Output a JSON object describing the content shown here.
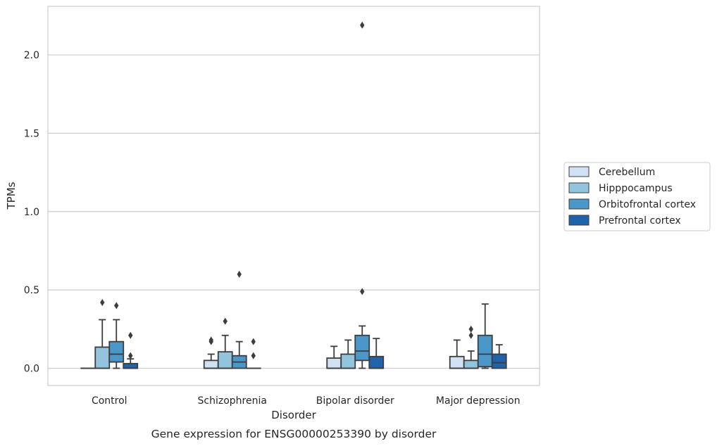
{
  "chart_data": {
    "type": "box",
    "title": "Gene expression for ENSG00000253390 by disorder",
    "xlabel": "Disorder",
    "ylabel": "TPMs",
    "ylim": [
      -0.11,
      2.31
    ],
    "yticks": [
      "0.0",
      "0.5",
      "1.0",
      "1.5",
      "2.0"
    ],
    "ytick_values": [
      0.0,
      0.5,
      1.0,
      1.5,
      2.0
    ],
    "grid": "horizontal",
    "legend_position": "right",
    "categories": [
      "Control",
      "Schizophrenia",
      "Bipolar disorder",
      "Major depression"
    ],
    "series": [
      {
        "name": "Cerebellum",
        "color": "#cfe1f2",
        "boxes": [
          {
            "category": "Control",
            "whislo": 0.0,
            "q1": 0.0,
            "median": 0.0,
            "q3": 0.0,
            "whishi": 0.0,
            "fliers": []
          },
          {
            "category": "Schizophrenia",
            "whislo": 0.0,
            "q1": 0.0,
            "median": 0.0,
            "q3": 0.05,
            "whishi": 0.09,
            "fliers": [
              0.17,
              0.18
            ]
          },
          {
            "category": "Bipolar disorder",
            "whislo": 0.0,
            "q1": 0.0,
            "median": 0.0,
            "q3": 0.065,
            "whishi": 0.14,
            "fliers": []
          },
          {
            "category": "Major depression",
            "whislo": 0.0,
            "q1": 0.0,
            "median": 0.0,
            "q3": 0.075,
            "whishi": 0.18,
            "fliers": []
          }
        ]
      },
      {
        "name": "Hipppocampus",
        "color": "#93c4de",
        "boxes": [
          {
            "category": "Control",
            "whislo": 0.0,
            "q1": 0.0,
            "median": 0.0,
            "q3": 0.135,
            "whishi": 0.31,
            "fliers": [
              0.42
            ]
          },
          {
            "category": "Schizophrenia",
            "whislo": 0.0,
            "q1": 0.0,
            "median": 0.0,
            "q3": 0.105,
            "whishi": 0.21,
            "fliers": [
              0.3
            ]
          },
          {
            "category": "Bipolar disorder",
            "whislo": 0.0,
            "q1": 0.0,
            "median": 0.0,
            "q3": 0.09,
            "whishi": 0.18,
            "fliers": []
          },
          {
            "category": "Major depression",
            "whislo": 0.0,
            "q1": 0.0,
            "median": 0.0,
            "q3": 0.05,
            "whishi": 0.11,
            "fliers": [
              0.21,
              0.25
            ]
          }
        ]
      },
      {
        "name": "Orbitofrontal cortex",
        "color": "#4b97c9",
        "boxes": [
          {
            "category": "Control",
            "whislo": 0.0,
            "q1": 0.04,
            "median": 0.09,
            "q3": 0.17,
            "whishi": 0.31,
            "fliers": [
              0.4
            ]
          },
          {
            "category": "Schizophrenia",
            "whislo": 0.0,
            "q1": 0.0,
            "median": 0.04,
            "q3": 0.08,
            "whishi": 0.17,
            "fliers": [
              0.6
            ]
          },
          {
            "category": "Bipolar disorder",
            "whislo": 0.0,
            "q1": 0.05,
            "median": 0.11,
            "q3": 0.21,
            "whishi": 0.27,
            "fliers": [
              0.49,
              2.19
            ]
          },
          {
            "category": "Major depression",
            "whislo": 0.0,
            "q1": 0.01,
            "median": 0.09,
            "q3": 0.21,
            "whishi": 0.41,
            "fliers": []
          }
        ]
      },
      {
        "name": "Prefrontal cortex",
        "color": "#2163aa",
        "boxes": [
          {
            "category": "Control",
            "whislo": 0.0,
            "q1": 0.0,
            "median": 0.0,
            "q3": 0.03,
            "whishi": 0.06,
            "fliers": [
              0.08,
              0.21
            ]
          },
          {
            "category": "Schizophrenia",
            "whislo": 0.0,
            "q1": 0.0,
            "median": 0.0,
            "q3": 0.0,
            "whishi": 0.0,
            "fliers": [
              0.08,
              0.17
            ]
          },
          {
            "category": "Bipolar disorder",
            "whislo": 0.0,
            "q1": 0.0,
            "median": 0.0,
            "q3": 0.075,
            "whishi": 0.19,
            "fliers": []
          },
          {
            "category": "Major depression",
            "whislo": 0.0,
            "q1": 0.0,
            "median": 0.035,
            "q3": 0.09,
            "whishi": 0.15,
            "fliers": []
          }
        ]
      }
    ]
  }
}
